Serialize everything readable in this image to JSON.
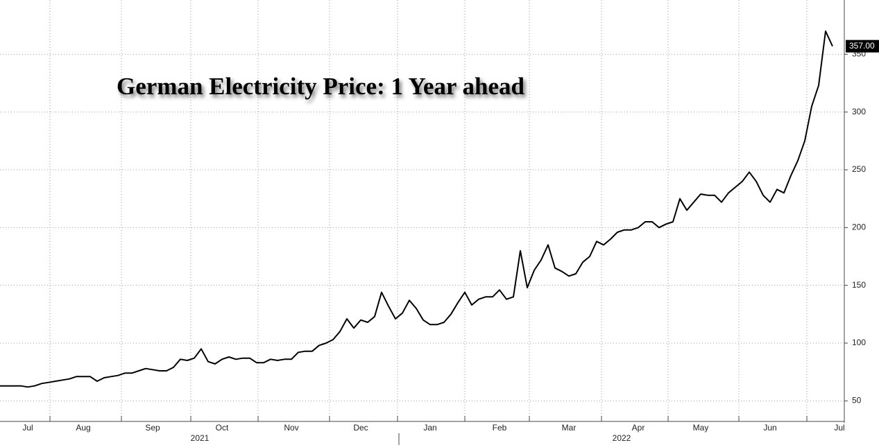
{
  "chart_data": {
    "type": "line",
    "title": "German Electricity Price: 1 Year ahead",
    "categories": [
      null,
      null,
      null,
      null,
      "Jul",
      null,
      null,
      null,
      null,
      null,
      null,
      null,
      "Aug",
      null,
      null,
      null,
      null,
      null,
      null,
      null,
      null,
      null,
      "Sep",
      null,
      null,
      null,
      null,
      null,
      null,
      null,
      null,
      null,
      "Oct",
      null,
      null,
      null,
      null,
      null,
      null,
      null,
      null,
      null,
      "Nov",
      null,
      null,
      null,
      null,
      null,
      null,
      null,
      null,
      null,
      "Dec",
      null,
      null,
      null,
      null,
      null,
      null,
      null,
      null,
      null,
      "Jan",
      null,
      null,
      null,
      null,
      null,
      null,
      null,
      null,
      null,
      "Feb",
      null,
      null,
      null,
      null,
      null,
      null,
      null,
      null,
      null,
      "Mar",
      null,
      null,
      null,
      null,
      null,
      null,
      null,
      null,
      null,
      "Apr",
      null,
      null,
      null,
      null,
      null,
      null,
      null,
      null,
      "May",
      null,
      null,
      null,
      null,
      null,
      null,
      null,
      null,
      null,
      "Jun",
      null,
      null,
      null,
      null,
      null,
      null,
      null,
      null,
      null,
      "Jul"
    ],
    "values": [
      63,
      63,
      63,
      63,
      62,
      63,
      65,
      66,
      67,
      68,
      69,
      71,
      71,
      71,
      67,
      70,
      71,
      72,
      74,
      74,
      76,
      78,
      77,
      76,
      76,
      79,
      86,
      85,
      87,
      95,
      84,
      82,
      86,
      88,
      86,
      87,
      87,
      83,
      83,
      86,
      85,
      86,
      86,
      92,
      93,
      93,
      98,
      100,
      103,
      110,
      121,
      113,
      120,
      118,
      123,
      144,
      132,
      121,
      126,
      137,
      130,
      120,
      116,
      116,
      118,
      125,
      135,
      144,
      133,
      138,
      140,
      140,
      146,
      138,
      140,
      180,
      148,
      163,
      172,
      185,
      165,
      162,
      158,
      160,
      170,
      175,
      188,
      185,
      190,
      196,
      198,
      198,
      200,
      205,
      205,
      200,
      203,
      205,
      225,
      215,
      222,
      229,
      228,
      228,
      222,
      230,
      235,
      240,
      248,
      240,
      228,
      222,
      233,
      230,
      245,
      258,
      275,
      305,
      323,
      370,
      357,
      null
    ],
    "value_labels": [
      null,
      null,
      null,
      null,
      null,
      null,
      null,
      null,
      null,
      null,
      null,
      null,
      null,
      null,
      null,
      null,
      null,
      null,
      null,
      null,
      null,
      null,
      null,
      null,
      null,
      null,
      null,
      null,
      null,
      null,
      null,
      null,
      null,
      null,
      null,
      null,
      null,
      null,
      null,
      null,
      null,
      null,
      null,
      null,
      null,
      null,
      null,
      null,
      null,
      null,
      null,
      null,
      null,
      null,
      null,
      null,
      null,
      null,
      null,
      null,
      null,
      null,
      null,
      null,
      null,
      null,
      null,
      null,
      null,
      null,
      null,
      null,
      null,
      null,
      null,
      null,
      null,
      null,
      null,
      null,
      null,
      null,
      null,
      null,
      null,
      null,
      null,
      null,
      null,
      null,
      null,
      null,
      null,
      null,
      null,
      null,
      null,
      null,
      null,
      null,
      null,
      null,
      null,
      null,
      null,
      null,
      null,
      null,
      null,
      null,
      null,
      null,
      null,
      null,
      null,
      null,
      null,
      null,
      null,
      null,
      "357.00",
      null
    ],
    "year_labels": [
      "2021",
      "2022"
    ],
    "color": "#000000",
    "ylim": [
      31,
      397
    ],
    "yticks": [
      50,
      100,
      150,
      200,
      250,
      300,
      350
    ],
    "grid": true
  }
}
